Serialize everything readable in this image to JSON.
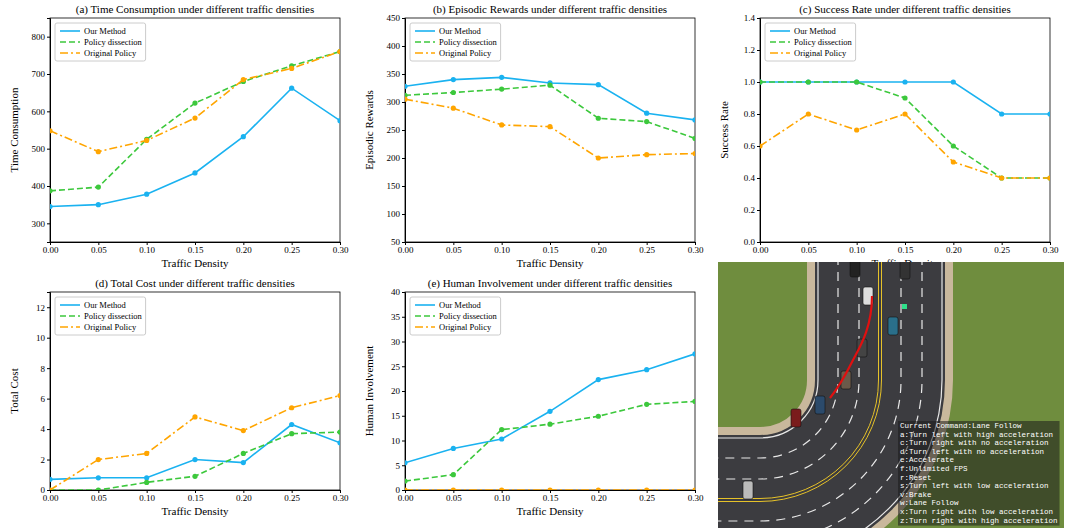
{
  "chart_data": [
    {
      "type": "line",
      "title": "(a) Time Consumption under different traffic densities",
      "x_label": "Traffic Density",
      "y_label": "Time Consumption",
      "x": [
        0,
        0.05,
        0.1,
        0.15,
        0.2,
        0.25,
        0.3
      ],
      "xlim": [
        0,
        0.3
      ],
      "xticks": [
        {
          "value": 0,
          "label": "0.00"
        },
        {
          "value": 0.05,
          "label": "0.05"
        },
        {
          "value": 0.1,
          "label": "0.10"
        },
        {
          "value": 0.15,
          "label": "0.15"
        },
        {
          "value": 0.2,
          "label": "0.20"
        },
        {
          "value": 0.25,
          "label": "0.25"
        },
        {
          "value": 0.3,
          "label": "0.30"
        }
      ],
      "ylim": [
        250,
        850
      ],
      "yticks": [
        300,
        400,
        500,
        600,
        700,
        800
      ],
      "grid": false,
      "legend": "upper left",
      "series": [
        {
          "name": "Our Method",
          "color": "#1ab2f0",
          "line_style": "solid",
          "marker": "circle",
          "values": [
            345,
            350,
            378,
            435,
            532,
            662,
            575
          ]
        },
        {
          "name": "Policy dissection",
          "color": "#3cc83c",
          "line_style": "dashed",
          "marker": "circle",
          "values": [
            387,
            397,
            525,
            622,
            680,
            722,
            760
          ]
        },
        {
          "name": "Original Policy",
          "color": "#ffa500",
          "line_style": "dashdot",
          "marker": "circle",
          "values": [
            548,
            492,
            522,
            582,
            685,
            715,
            760
          ]
        }
      ]
    },
    {
      "type": "line",
      "title": "(b) Episodic Rewards under different traffic densities",
      "x_label": "Traffic Density",
      "y_label": "Episodic Rewards",
      "x": [
        0,
        0.05,
        0.1,
        0.15,
        0.2,
        0.25,
        0.3
      ],
      "xlim": [
        0,
        0.3
      ],
      "xticks": [
        {
          "value": 0,
          "label": "0.00"
        },
        {
          "value": 0.05,
          "label": "0.05"
        },
        {
          "value": 0.1,
          "label": "0.10"
        },
        {
          "value": 0.15,
          "label": "0.15"
        },
        {
          "value": 0.2,
          "label": "0.20"
        },
        {
          "value": 0.25,
          "label": "0.25"
        },
        {
          "value": 0.3,
          "label": "0.30"
        }
      ],
      "ylim": [
        50,
        450
      ],
      "yticks": [
        50,
        100,
        150,
        200,
        250,
        300,
        350,
        400,
        450
      ],
      "grid": false,
      "legend": "upper left",
      "series": [
        {
          "name": "Our Method",
          "color": "#1ab2f0",
          "line_style": "solid",
          "marker": "circle",
          "values": [
            328,
            340,
            344,
            334,
            331,
            280,
            268
          ]
        },
        {
          "name": "Policy dissection",
          "color": "#3cc83c",
          "line_style": "dashed",
          "marker": "circle",
          "values": [
            312,
            317,
            323,
            330,
            271,
            265,
            235
          ]
        },
        {
          "name": "Original Policy",
          "color": "#ffa500",
          "line_style": "dashdot",
          "marker": "circle",
          "values": [
            305,
            289,
            259,
            256,
            200,
            206,
            208
          ]
        }
      ]
    },
    {
      "type": "line",
      "title": "(c) Success Rate under different traffic densities",
      "x_label": "Traffic Density",
      "y_label": "Success Rate",
      "x": [
        0,
        0.05,
        0.1,
        0.15,
        0.2,
        0.25,
        0.3
      ],
      "xlim": [
        0,
        0.3
      ],
      "xticks": [
        {
          "value": 0,
          "label": "0.00"
        },
        {
          "value": 0.05,
          "label": "0.05"
        },
        {
          "value": 0.1,
          "label": "0.10"
        },
        {
          "value": 0.15,
          "label": "0.15"
        },
        {
          "value": 0.2,
          "label": "0.20"
        },
        {
          "value": 0.25,
          "label": "0.25"
        },
        {
          "value": 0.3,
          "label": "0.30"
        }
      ],
      "ylim": [
        0,
        1.4
      ],
      "yticks": [
        {
          "value": 0,
          "label": "0.0"
        },
        {
          "value": 0.2,
          "label": "0.2"
        },
        {
          "value": 0.4,
          "label": "0.4"
        },
        {
          "value": 0.6,
          "label": "0.6"
        },
        {
          "value": 0.8,
          "label": "0.8"
        },
        {
          "value": 1,
          "label": "1.0"
        },
        {
          "value": 1.2,
          "label": "1.2"
        },
        {
          "value": 1.4,
          "label": "1.4"
        }
      ],
      "grid": false,
      "legend": "upper left",
      "series": [
        {
          "name": "Our Method",
          "color": "#1ab2f0",
          "line_style": "solid",
          "marker": "circle",
          "values": [
            1,
            1,
            1,
            1,
            1,
            0.8,
            0.8
          ]
        },
        {
          "name": "Policy dissection",
          "color": "#3cc83c",
          "line_style": "dashed",
          "marker": "circle",
          "values": [
            1,
            1,
            1,
            0.9,
            0.6,
            0.4,
            0.4
          ]
        },
        {
          "name": "Original Policy",
          "color": "#ffa500",
          "line_style": "dashdot",
          "marker": "circle",
          "values": [
            0.6,
            0.8,
            0.7,
            0.8,
            0.5,
            0.4,
            0.4
          ]
        }
      ]
    },
    {
      "type": "line",
      "title": "(d) Total Cost under different traffic densities",
      "x_label": "Traffic Density",
      "y_label": "Total Cost",
      "x": [
        0,
        0.05,
        0.1,
        0.15,
        0.2,
        0.25,
        0.3
      ],
      "xlim": [
        0,
        0.3
      ],
      "xticks": [
        {
          "value": 0,
          "label": "0.00"
        },
        {
          "value": 0.05,
          "label": "0.05"
        },
        {
          "value": 0.1,
          "label": "0.10"
        },
        {
          "value": 0.15,
          "label": "0.15"
        },
        {
          "value": 0.2,
          "label": "0.20"
        },
        {
          "value": 0.25,
          "label": "0.25"
        },
        {
          "value": 0.3,
          "label": "0.30"
        }
      ],
      "ylim": [
        0,
        13
      ],
      "yticks": [
        0,
        2,
        4,
        6,
        8,
        10,
        12
      ],
      "grid": false,
      "legend": "upper left",
      "series": [
        {
          "name": "Our Method",
          "color": "#1ab2f0",
          "line_style": "solid",
          "marker": "circle",
          "values": [
            0.7,
            0.8,
            0.8,
            2.0,
            1.8,
            4.3,
            3.1
          ]
        },
        {
          "name": "Policy dissection",
          "color": "#3cc83c",
          "line_style": "dashed",
          "marker": "circle",
          "values": [
            0,
            0,
            0.5,
            0.9,
            2.4,
            3.7,
            3.8
          ]
        },
        {
          "name": "Original Policy",
          "color": "#ffa500",
          "line_style": "dashdot",
          "marker": "circle",
          "values": [
            0,
            2.0,
            2.4,
            4.8,
            3.9,
            5.4,
            6.2
          ]
        }
      ]
    },
    {
      "type": "line",
      "title": "(e) Human Involvement under different traffic densities",
      "x_label": "Traffic Density",
      "y_label": "Human Involvement",
      "x": [
        0,
        0.05,
        0.1,
        0.15,
        0.2,
        0.25,
        0.3
      ],
      "xlim": [
        0,
        0.3
      ],
      "xticks": [
        {
          "value": 0,
          "label": "0.00"
        },
        {
          "value": 0.05,
          "label": "0.05"
        },
        {
          "value": 0.1,
          "label": "0.10"
        },
        {
          "value": 0.15,
          "label": "0.15"
        },
        {
          "value": 0.2,
          "label": "0.20"
        },
        {
          "value": 0.25,
          "label": "0.25"
        },
        {
          "value": 0.3,
          "label": "0.30"
        }
      ],
      "ylim": [
        0,
        40
      ],
      "yticks": [
        0,
        5,
        10,
        15,
        20,
        25,
        30,
        35,
        40
      ],
      "grid": false,
      "legend": "upper left",
      "series": [
        {
          "name": "Our Method",
          "color": "#1ab2f0",
          "line_style": "solid",
          "marker": "circle",
          "values": [
            5.5,
            8.4,
            10.3,
            15.9,
            22.3,
            24.3,
            27.5
          ]
        },
        {
          "name": "Policy dissection",
          "color": "#3cc83c",
          "line_style": "dashed",
          "marker": "circle",
          "values": [
            1.8,
            3.1,
            12.2,
            13.3,
            14.9,
            17.3,
            17.9
          ]
        },
        {
          "name": "Original Policy",
          "color": "#ffa500",
          "line_style": "dashdot",
          "marker": "circle",
          "values": [
            0,
            0,
            0,
            0,
            0,
            0,
            0
          ]
        }
      ]
    }
  ],
  "screenshot": {
    "command": "Current Command:Lane Follow",
    "keys": [
      "a:Turn left with high acceleration",
      "c:Turn right with no acceleration",
      "d:Turn left with no acceleration",
      "e:Accelerate",
      "f:Unlimited FPS",
      "r:Reset",
      "s:Turn left with low acceleration",
      "v:Brake",
      "w:Lane Follow",
      "x:Turn right with low acceleration",
      "z:Turn right with high acceleration"
    ]
  }
}
